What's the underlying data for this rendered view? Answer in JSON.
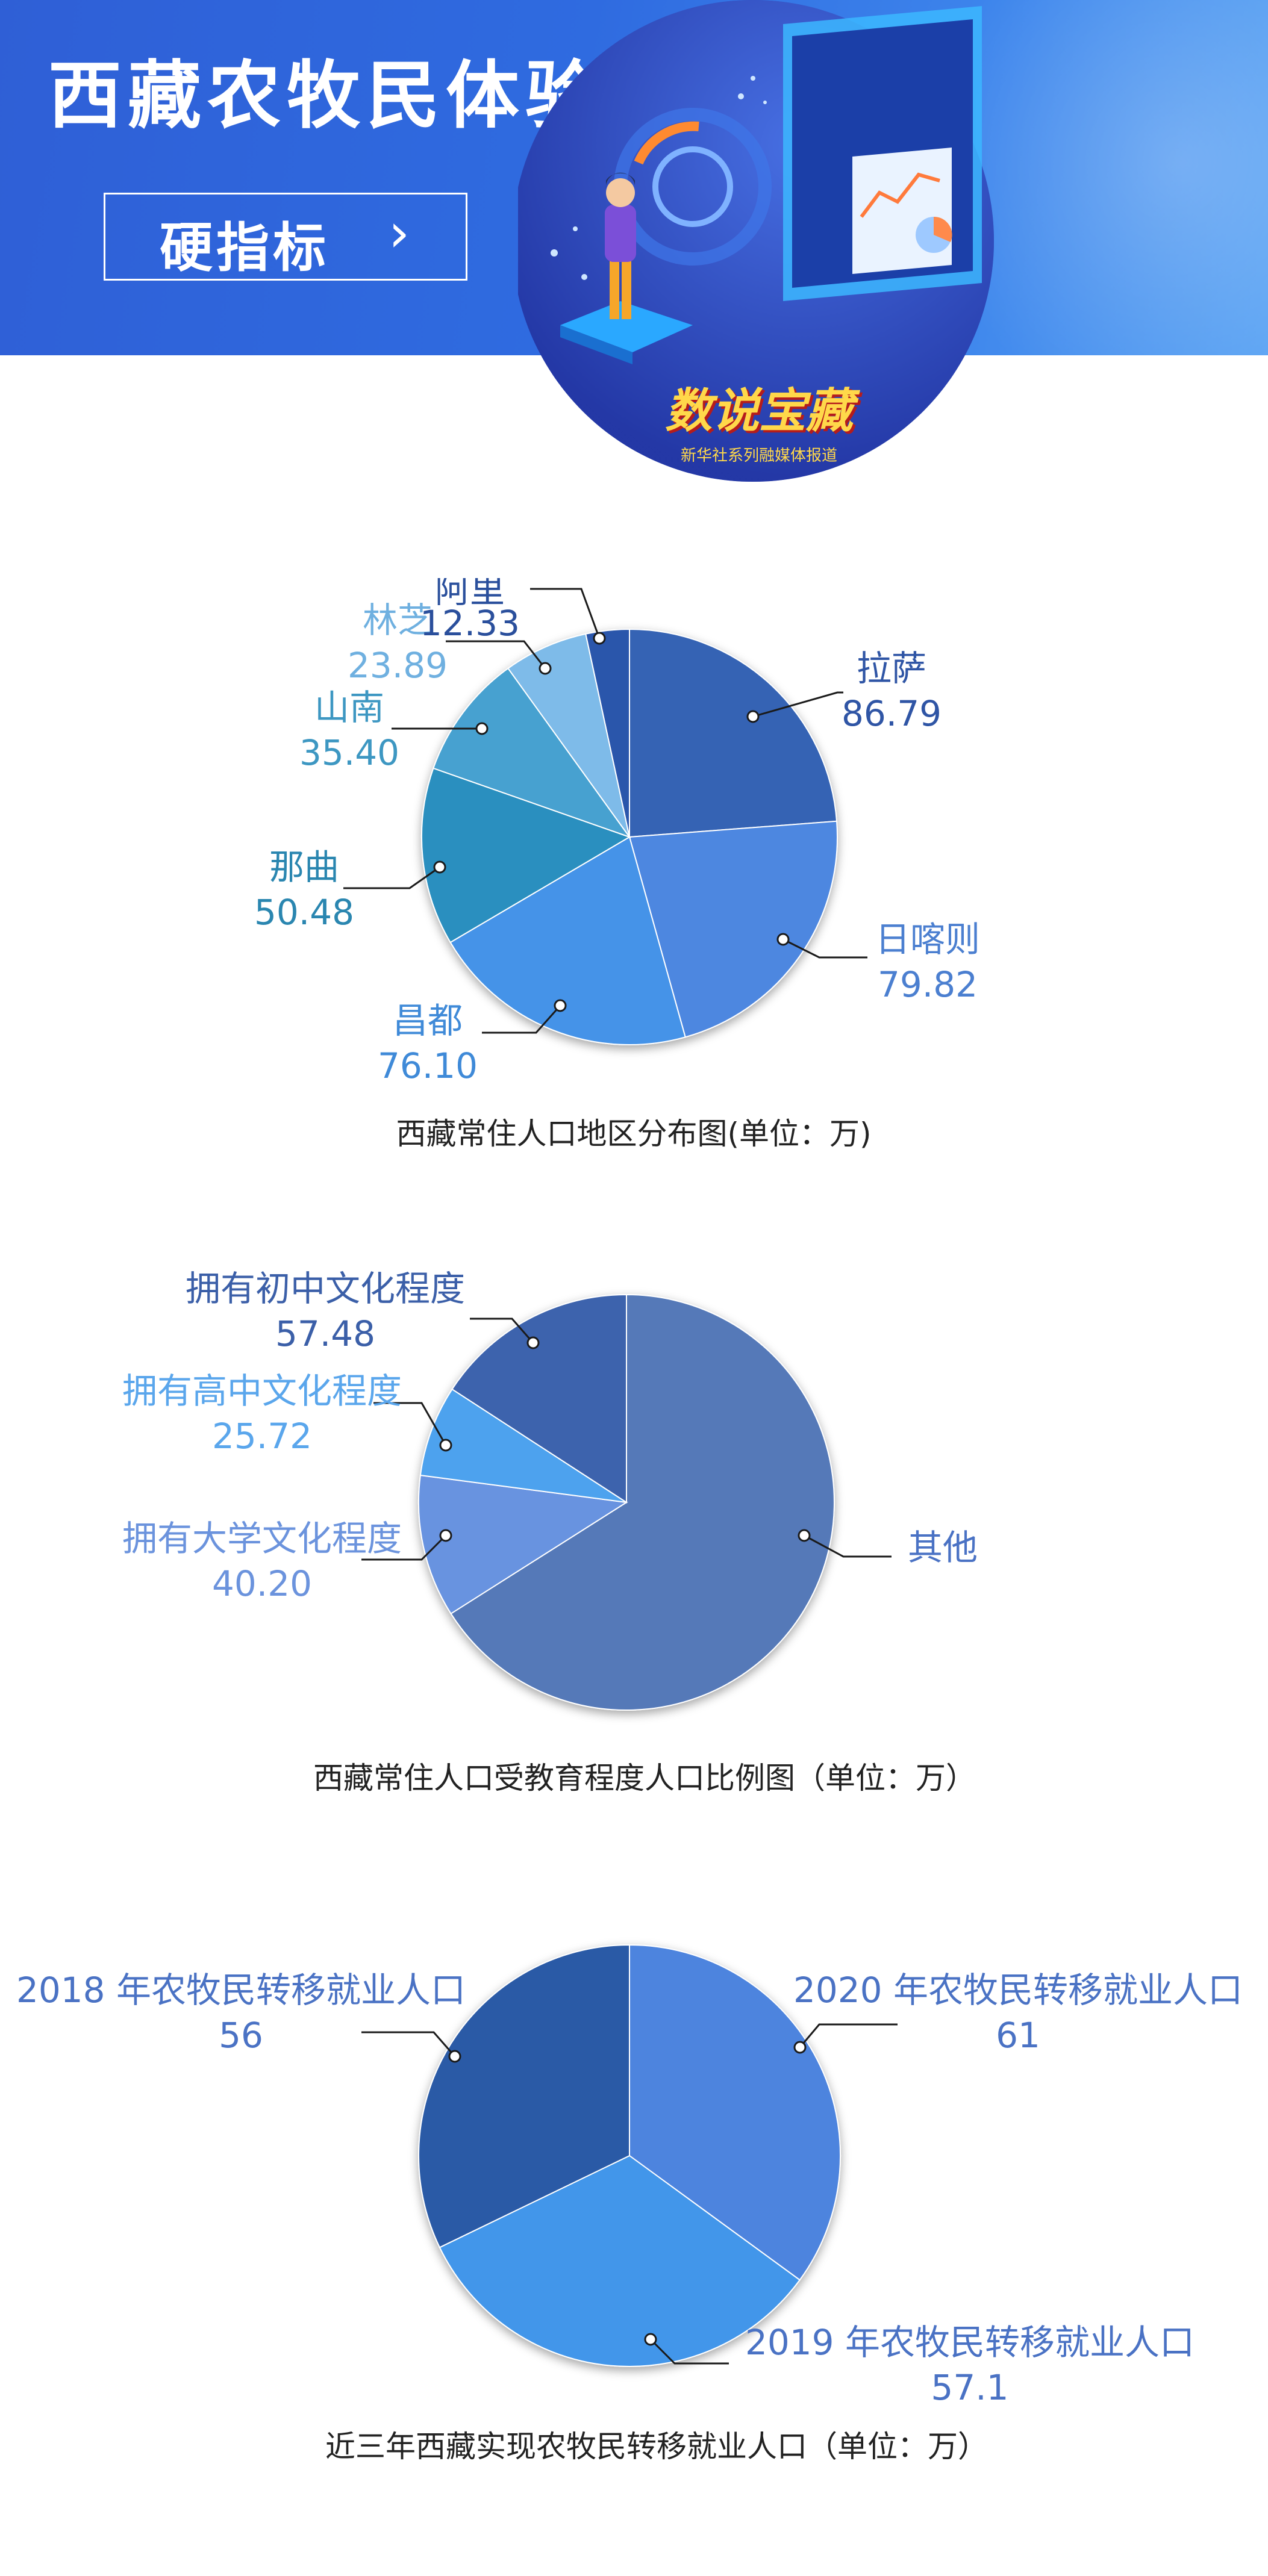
{
  "header": {
    "title": "西藏农牧民体验多彩人生",
    "button_label": "硬指标",
    "chevron_icon": "chevron-right-icon",
    "brand_name": "数说宝藏",
    "brand_sub": "新华社系列融媒体报道",
    "colors": {
      "bg_start": "#2f5fd6",
      "bg_end": "#5aa3f3",
      "circle": "#2a44b8"
    }
  },
  "charts": [
    {
      "chart_data": {
        "type": "pie",
        "title": "西藏常住人口地区分布图(单位：万)",
        "slices": [
          {
            "name": "拉萨",
            "value": 86.79,
            "value_label": "86.79",
            "color": "#3464b4",
            "label_color": "#2f55a5"
          },
          {
            "name": "日喀则",
            "value": 79.82,
            "value_label": "79.82",
            "color": "#4e87e0",
            "label_color": "#4b7fd0"
          },
          {
            "name": "昌都",
            "value": 76.1,
            "value_label": "76.10",
            "color": "#4593e8",
            "label_color": "#3f8ad8"
          },
          {
            "name": "那曲",
            "value": 50.48,
            "value_label": "50.48",
            "color": "#2a8fbf",
            "label_color": "#2a86b0"
          },
          {
            "name": "山南",
            "value": 35.4,
            "value_label": "35.40",
            "color": "#46a1d0",
            "label_color": "#3d97c2"
          },
          {
            "name": "林芝",
            "value": 23.89,
            "value_label": "23.89",
            "color": "#7ebbe9",
            "label_color": "#6fb0e0"
          },
          {
            "name": "阿里",
            "value": 12.33,
            "value_label": "12.33",
            "color": "#2a56ab",
            "label_color": "#2a4f9c"
          }
        ]
      }
    },
    {
      "chart_data": {
        "type": "pie",
        "title": "西藏常住人口受教育程度人口比例图（单位：万）",
        "slices": [
          {
            "name": "其他",
            "value": 239.6,
            "value_label": "",
            "color": "#5479b8",
            "label_color": "#4a72c4"
          },
          {
            "name": "拥有大学文化程度",
            "value": 40.2,
            "value_label": "40.20",
            "color": "#6893e0",
            "label_color": "#6b93dd"
          },
          {
            "name": "拥有高中文化程度",
            "value": 25.72,
            "value_label": "25.72",
            "color": "#4ea2ee",
            "label_color": "#5aa6ec"
          },
          {
            "name": "拥有初中文化程度",
            "value": 57.48,
            "value_label": "57.48",
            "color": "#3e64ad",
            "label_color": "#3b5fa8"
          }
        ]
      }
    },
    {
      "chart_data": {
        "type": "pie",
        "title": "近三年西藏实现农牧民转移就业人口（单位：万）",
        "slices": [
          {
            "name": "2020 年农牧民转移就业人口",
            "value": 61,
            "value_label": "61",
            "color": "#4e84de",
            "label_color": "#4a72c4"
          },
          {
            "name": "2019 年农牧民转移就业人口",
            "value": 57.1,
            "value_label": "57.1",
            "color": "#4396ea",
            "label_color": "#4a72c4"
          },
          {
            "name": "2018 年农牧民转移就业人口",
            "value": 56,
            "value_label": "56",
            "color": "#2c5aa6",
            "label_color": "#4a72c4"
          }
        ]
      }
    }
  ]
}
